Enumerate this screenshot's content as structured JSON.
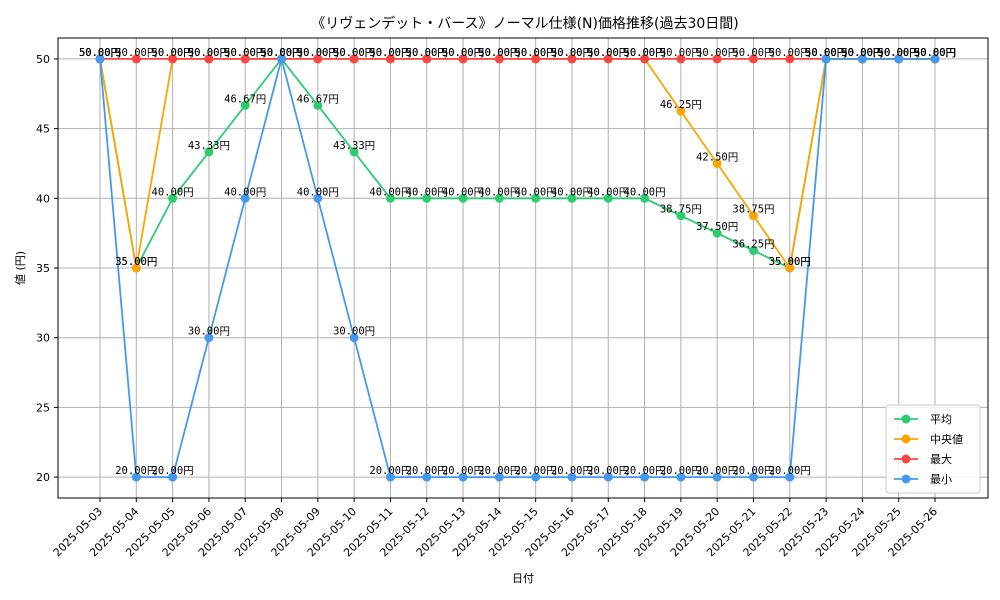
{
  "chart_data": {
    "type": "line",
    "title": "《リヴェンデット・バース》ノーマル仕様(N)価格推移(過去30日間)",
    "xlabel": "日付",
    "ylabel": "値 (円)",
    "ylim": [
      18.5,
      51.5
    ],
    "yticks": [
      20,
      25,
      30,
      35,
      40,
      45,
      50
    ],
    "grid": true,
    "legend_position": "bottom-right",
    "label_suffix": "円",
    "categories": [
      "2025-05-03",
      "2025-05-04",
      "2025-05-05",
      "2025-05-06",
      "2025-05-07",
      "2025-05-08",
      "2025-05-09",
      "2025-05-10",
      "2025-05-11",
      "2025-05-12",
      "2025-05-13",
      "2025-05-14",
      "2025-05-15",
      "2025-05-16",
      "2025-05-17",
      "2025-05-18",
      "2025-05-19",
      "2025-05-20",
      "2025-05-21",
      "2025-05-22",
      "2025-05-23",
      "2025-05-24",
      "2025-05-25",
      "2025-05-26"
    ],
    "series": [
      {
        "name": "平均",
        "color": "#2ecc71",
        "values": [
          50,
          35,
          40,
          43.33,
          46.67,
          50,
          46.67,
          43.33,
          40,
          40,
          40,
          40,
          40,
          40,
          40,
          40,
          38.75,
          37.5,
          36.25,
          35,
          50,
          50,
          50,
          50
        ]
      },
      {
        "name": "中央値",
        "color": "#ffa500",
        "values": [
          50,
          35,
          50,
          50,
          50,
          50,
          50,
          50,
          50,
          50,
          50,
          50,
          50,
          50,
          50,
          50,
          46.25,
          42.5,
          38.75,
          35,
          50,
          50,
          50,
          50
        ]
      },
      {
        "name": "最大",
        "color": "#ff4444",
        "values": [
          50,
          50,
          50,
          50,
          50,
          50,
          50,
          50,
          50,
          50,
          50,
          50,
          50,
          50,
          50,
          50,
          50,
          50,
          50,
          50,
          50,
          50,
          50,
          50
        ]
      },
      {
        "name": "最小",
        "color": "#4499ee",
        "values": [
          50,
          20,
          20,
          30,
          40,
          50,
          40,
          30,
          20,
          20,
          20,
          20,
          20,
          20,
          20,
          20,
          20,
          20,
          20,
          20,
          50,
          50,
          50,
          50
        ]
      }
    ]
  }
}
